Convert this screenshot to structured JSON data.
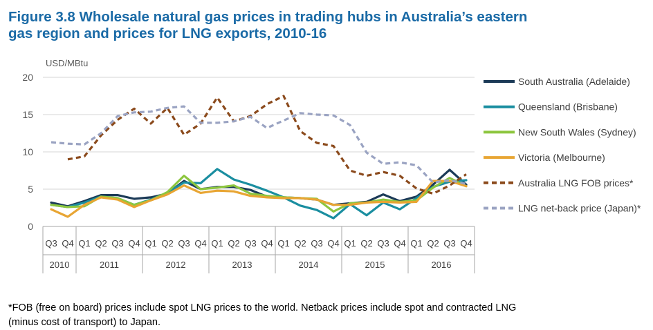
{
  "figure": {
    "title_line1": "Figure 3.8 Wholesale natural gas prices in trading hubs in Australia’s eastern",
    "title_line2": "gas region and prices for LNG exports, 2010-16",
    "footnote_line1": "*FOB (free on board) prices include spot LNG prices to the world. Netback prices include spot and contracted LNG",
    "footnote_line2": "(minus cost of transport) to Japan."
  },
  "chart_data": {
    "type": "line",
    "ylabel": "USD/MBtu",
    "ylim": [
      0,
      20
    ],
    "yticks": [
      0,
      5,
      10,
      15,
      20
    ],
    "grid": true,
    "legend_position": "right",
    "categories": [
      "Q3",
      "Q4",
      "Q1",
      "Q2",
      "Q3",
      "Q4",
      "Q1",
      "Q2",
      "Q3",
      "Q4",
      "Q1",
      "Q2",
      "Q3",
      "Q4",
      "Q1",
      "Q2",
      "Q3",
      "Q4",
      "Q1",
      "Q2",
      "Q3",
      "Q4",
      "Q1",
      "Q2",
      "Q3",
      "Q4"
    ],
    "years": [
      {
        "label": "2010",
        "span": 2
      },
      {
        "label": "2011",
        "span": 4
      },
      {
        "label": "2012",
        "span": 4
      },
      {
        "label": "2013",
        "span": 4
      },
      {
        "label": "2014",
        "span": 4
      },
      {
        "label": "2015",
        "span": 4
      },
      {
        "label": "2016",
        "span": 4
      }
    ],
    "series": [
      {
        "name": "South Australia (Adelaide)",
        "color": "#1b3a57",
        "dashed": false,
        "values": [
          3.2,
          2.7,
          3.4,
          4.2,
          4.2,
          3.7,
          3.9,
          4.4,
          6.1,
          5.0,
          5.3,
          5.3,
          4.9,
          4.0,
          3.9,
          3.8,
          3.6,
          2.9,
          3.1,
          3.3,
          4.3,
          3.4,
          4.0,
          5.6,
          7.6,
          5.6
        ]
      },
      {
        "name": "Queensland (Brisbane)",
        "color": "#1a8ea0",
        "dashed": false,
        "values": [
          2.9,
          2.6,
          3.2,
          4.0,
          3.8,
          2.9,
          3.6,
          4.5,
          5.9,
          5.8,
          7.7,
          6.3,
          5.6,
          4.8,
          3.9,
          2.8,
          2.2,
          1.1,
          3.0,
          1.5,
          3.2,
          2.3,
          3.8,
          5.3,
          6.0,
          6.2
        ]
      },
      {
        "name": "New South Wales (Sydney)",
        "color": "#8dc63f",
        "dashed": false,
        "values": [
          2.9,
          2.6,
          2.7,
          4.0,
          3.8,
          2.9,
          3.5,
          4.6,
          6.8,
          5.0,
          5.2,
          5.5,
          4.4,
          4.1,
          3.9,
          3.8,
          3.7,
          2.0,
          3.1,
          3.2,
          3.6,
          3.3,
          3.5,
          5.2,
          6.5,
          5.4
        ]
      },
      {
        "name": "Victoria (Melbourne)",
        "color": "#e8a533",
        "dashed": false,
        "values": [
          2.3,
          1.3,
          2.9,
          3.9,
          3.6,
          2.6,
          3.5,
          4.3,
          5.5,
          4.5,
          4.8,
          4.7,
          4.1,
          3.9,
          3.8,
          3.8,
          3.6,
          2.9,
          2.9,
          3.2,
          3.3,
          3.2,
          3.3,
          6.1,
          6.1,
          5.4
        ]
      },
      {
        "name": "Australia LNG FOB prices*",
        "color": "#8b4a1c",
        "dashed": true,
        "values": [
          null,
          9.0,
          9.4,
          12.2,
          14.3,
          15.8,
          13.8,
          15.9,
          12.3,
          13.8,
          17.3,
          14.1,
          14.8,
          16.4,
          17.5,
          12.8,
          11.2,
          10.8,
          7.5,
          6.8,
          7.3,
          6.8,
          5.1,
          4.4,
          5.5,
          7.0
        ]
      },
      {
        "name": "LNG net-back price (Japan)*",
        "color": "#9aa3c2",
        "dashed": true,
        "values": [
          11.3,
          11.1,
          11.0,
          12.5,
          14.8,
          15.3,
          15.4,
          15.9,
          16.1,
          13.9,
          13.9,
          14.1,
          14.7,
          13.2,
          14.2,
          15.2,
          15.0,
          14.9,
          13.6,
          9.9,
          8.4,
          8.6,
          8.2,
          5.9,
          6.2,
          5.7
        ]
      }
    ]
  }
}
